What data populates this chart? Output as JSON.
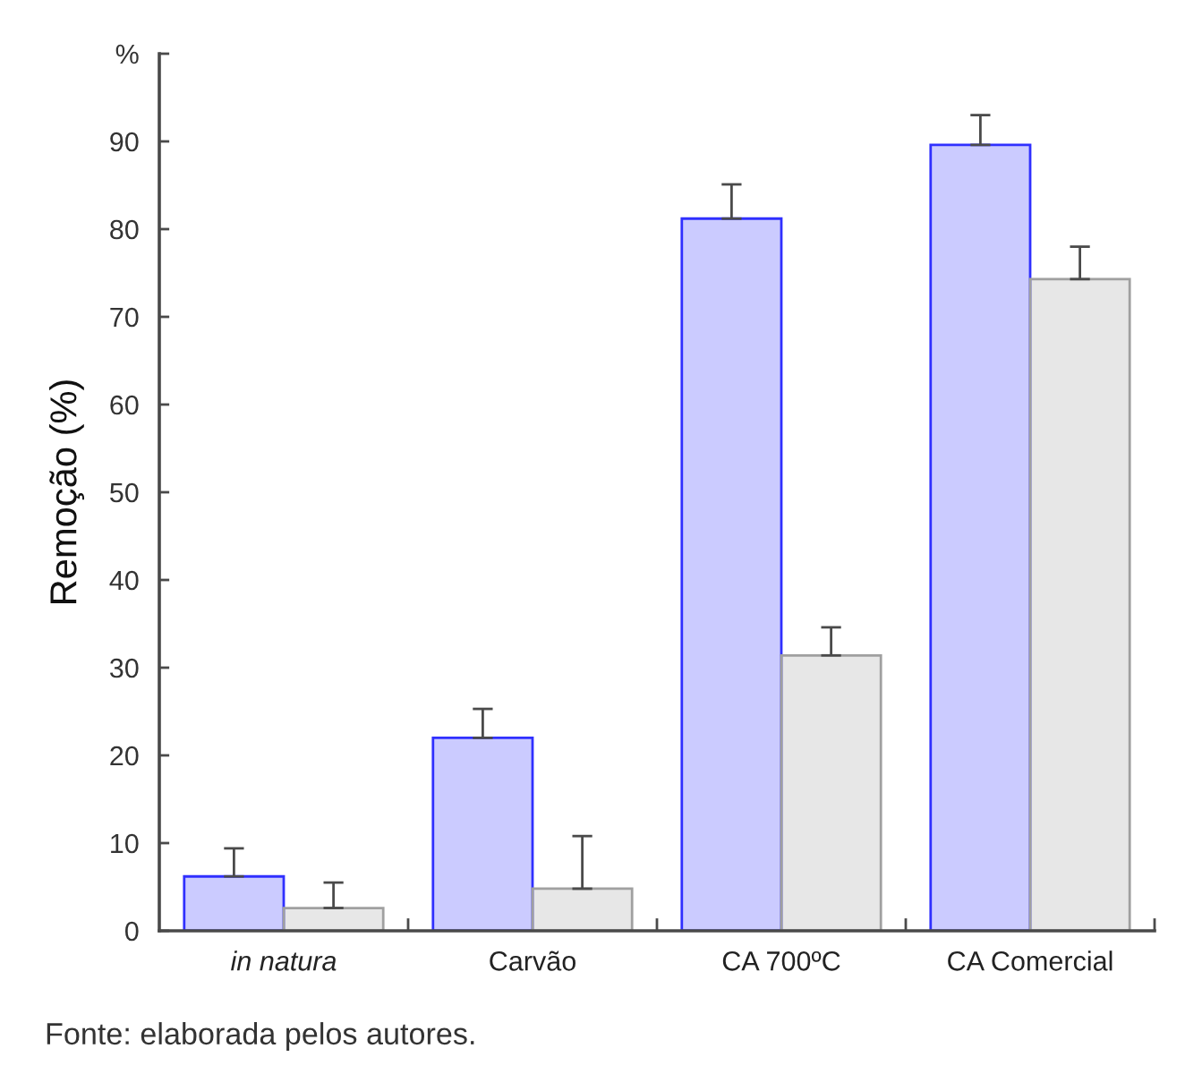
{
  "chart_data": {
    "type": "bar",
    "ylabel": "Remoção (%)",
    "categories": [
      "in natura",
      "Carvão",
      "CA 700ºC",
      "CA Comercial"
    ],
    "series": [
      {
        "color": "#3030ff",
        "values": [
          6.2,
          22.0,
          81.2,
          89.6
        ],
        "errors": [
          [
            6.2,
            9.4
          ],
          [
            22.0,
            25.3
          ],
          [
            81.2,
            85.1
          ],
          [
            89.6,
            93.0
          ]
        ]
      },
      {
        "color": "#a0a0a0",
        "values": [
          2.6,
          4.8,
          31.4,
          74.3
        ],
        "errors": [
          [
            2.6,
            5.5
          ],
          [
            4.8,
            10.8
          ],
          [
            31.4,
            34.6
          ],
          [
            74.3,
            78.0
          ]
        ]
      }
    ],
    "ylim": [
      0,
      100
    ],
    "yticks": [
      0,
      10,
      20,
      30,
      40,
      50,
      60,
      70,
      80,
      90,
      {
        "value": 100,
        "label": "%"
      }
    ],
    "annotations": [
      "Fonte: elaborada pelos autores."
    ]
  }
}
